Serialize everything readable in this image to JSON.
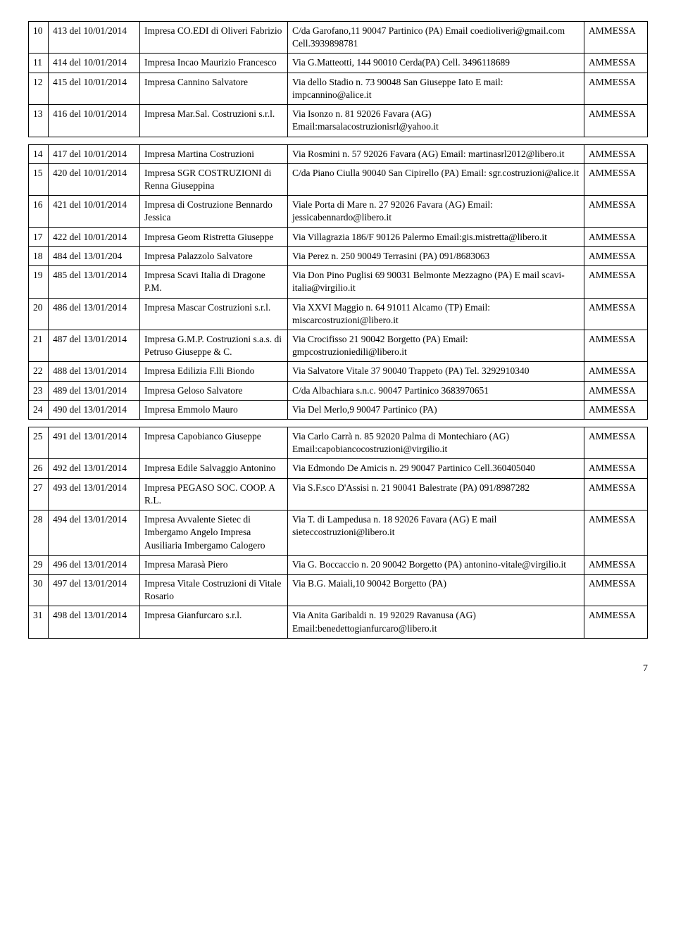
{
  "rows": [
    {
      "n": "10",
      "ref": "413 del 10/01/2014",
      "impresa": "Impresa CO.EDI di Oliveri Fabrizio",
      "addr": "C/da Garofano,11 90047 Partinico (PA) Email coedioliveri@gmail.com Cell.3939898781",
      "status": "AMMESSA"
    },
    {
      "n": "11",
      "ref": "414 del 10/01/2014",
      "impresa": "Impresa Incao Maurizio Francesco",
      "addr": "Via G.Matteotti, 144 90010 Cerda(PA) Cell. 3496118689",
      "status": "AMMESSA"
    },
    {
      "n": "12",
      "ref": "415 del 10/01/2014",
      "impresa": "Impresa Cannino Salvatore",
      "addr": "Via dello Stadio n. 73 90048 San Giuseppe Iato E mail: impcannino@alice.it",
      "status": "AMMESSA"
    },
    {
      "n": "13",
      "ref": "416 del  10/01/2014",
      "impresa": "Impresa Mar.Sal. Costruzioni s.r.l.",
      "addr": "Via Isonzo n. 81   92026 Favara (AG) Email:marsalacostruzionisrl@yahoo.it",
      "status": "AMMESSA"
    }
  ],
  "rows2": [
    {
      "n": "14",
      "ref": "417 del  10/01/2014",
      "impresa": "Impresa Martina Costruzioni",
      "addr": "Via Rosmini n. 57   92026 Favara (AG) Email: martinasrl2012@libero.it",
      "status": "AMMESSA"
    },
    {
      "n": "15",
      "ref": "420 del 10/01/2014",
      "impresa": "Impresa SGR COSTRUZIONI di Renna Giuseppina",
      "addr": "C/da Piano Ciulla 90040 San Cipirello  (PA) Email: sgr.costruzioni@alice.it",
      "status": "AMMESSA"
    },
    {
      "n": "16",
      "ref": "421 del 10/01/2014",
      "impresa": "Impresa di Costruzione Bennardo Jessica",
      "addr": "Viale Porta di Mare  n. 27 92026 Favara (AG) Email: jessicabennardo@libero.it",
      "status": "AMMESSA"
    },
    {
      "n": "17",
      "ref": "422 del 10/01/2014",
      "impresa": "Impresa Geom Ristretta Giuseppe",
      "addr": "Via Villagrazia 186/F 90126 Palermo Email:gis.mistretta@libero.it",
      "status": "AMMESSA"
    },
    {
      "n": "18",
      "ref": "484 del 13/01/204",
      "impresa": "Impresa  Palazzolo Salvatore",
      "addr": "Via Perez n. 250 90049 Terrasini (PA) 091/8683063",
      "status": "AMMESSA"
    },
    {
      "n": "19",
      "ref": "485 del 13/01/2014",
      "impresa": "Impresa Scavi Italia di Dragone  P.M.",
      "addr": "Via Don Pino Puglisi  69 90031 Belmonte Mezzagno (PA) E mail scavi-italia@virgilio.it",
      "status": "AMMESSA"
    },
    {
      "n": "20",
      "ref": "486 del 13/01/2014",
      "impresa": "Impresa  Mascar Costruzioni s.r.l.",
      "addr": "Via XXVI Maggio n. 64 91011 Alcamo (TP) Email: miscarcostruzioni@libero.it",
      "status": "AMMESSA"
    },
    {
      "n": "21",
      "ref": "487 del 13/01/2014",
      "impresa": "Impresa G.M.P.  Costruzioni s.a.s. di Petruso  Giuseppe & C.",
      "addr": "Via Crocifisso 21 90042 Borgetto (PA) Email: gmpcostruzioniedili@libero.it",
      "status": "AMMESSA"
    },
    {
      "n": "22",
      "ref": "488 del 13/01/2014",
      "impresa": "Impresa Edilizia  F.lli Biondo",
      "addr": "Via Salvatore Vitale 37 90040 Trappeto (PA) Tel. 3292910340",
      "status": "AMMESSA"
    },
    {
      "n": "23",
      "ref": "489 del 13/01/2014",
      "impresa": "Impresa Geloso Salvatore",
      "addr": "C/da Albachiara s.n.c. 90047 Partinico 3683970651",
      "status": "AMMESSA"
    },
    {
      "n": "24",
      "ref": "490 del 13/01/2014",
      "impresa": "Impresa Emmolo Mauro",
      "addr": "Via Del Merlo,9 90047 Partinico (PA)",
      "status": "AMMESSA"
    }
  ],
  "rows3": [
    {
      "n": "25",
      "ref": "491 del 13/01/2014",
      "impresa": "Impresa  Capobianco Giuseppe",
      "addr": "Via Carlo Carrà  n. 85  92020 Palma di Montechiaro (AG) Email:capobiancocostruzioni@virgilio.it",
      "status": "AMMESSA"
    },
    {
      "n": "26",
      "ref": "492 del 13/01/2014",
      "impresa": "Impresa Edile  Salvaggio Antonino",
      "addr": "Via Edmondo De Amicis n. 29 90047 Partinico Cell.360405040",
      "status": "AMMESSA"
    },
    {
      "n": "27",
      "ref": "493 del 13/01/2014",
      "impresa": "Impresa PEGASO SOC. COOP. A R.L.",
      "addr": "Via S.F.sco D'Assisi  n. 21 90041 Balestrate (PA) 091/8987282",
      "status": "AMMESSA"
    },
    {
      "n": "28",
      "ref": "494 del 13/01/2014",
      "impresa": "Impresa Avvalente Sietec di Imbergamo Angelo Impresa Ausiliaria Imbergamo Calogero",
      "addr": "Via T. di Lampedusa n. 18 92026 Favara (AG) E mail  sieteccostruzioni@libero.it",
      "status": "AMMESSA"
    },
    {
      "n": "29",
      "ref": "496 del 13/01/2014",
      "impresa": "Impresa Marasà Piero",
      "addr": "Via G. Boccaccio n. 20 90042  Borgetto (PA) antonino-vitale@virgilio.it",
      "status": "AMMESSA"
    },
    {
      "n": "30",
      "ref": "497 del 13/01/2014",
      "impresa": "Impresa Vitale Costruzioni di Vitale Rosario",
      "addr": "Via B.G. Maiali,10 90042 Borgetto (PA)",
      "status": "AMMESSA"
    },
    {
      "n": "31",
      "ref": "498 del 13/01/2014",
      "impresa": "Impresa Gianfurcaro  s.r.l.",
      "addr": "Via Anita Garibaldi  n. 19 92029 Ravanusa  (AG) Email:benedettogianfurcaro@libero.it",
      "status": "AMMESSA"
    }
  ],
  "pageNumber": "7"
}
